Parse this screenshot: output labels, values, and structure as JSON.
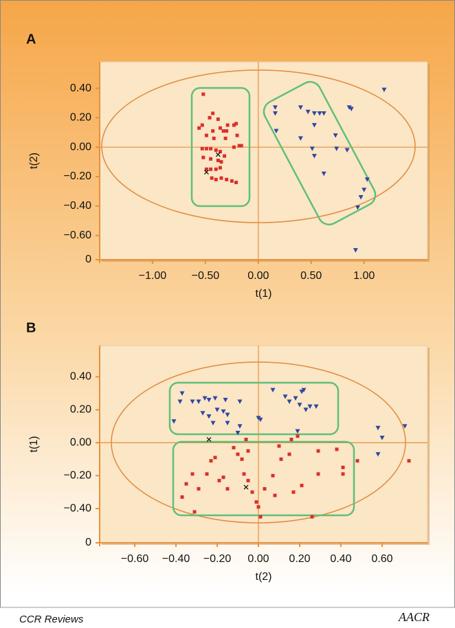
{
  "chart_data": [
    {
      "type": "scatter",
      "panel_label": "A",
      "x_label": "t(1)",
      "y_label": "t(2)",
      "xlim": [
        -1.5,
        1.6
      ],
      "ylim": [
        -0.765,
        0.58
      ],
      "xticks": [
        {
          "value": -1,
          "label": "−1.00"
        },
        {
          "value": -0.5,
          "label": "−0.50"
        },
        {
          "value": 0,
          "label": "0.00"
        },
        {
          "value": 0.5,
          "label": "0.50"
        },
        {
          "value": 1,
          "label": "1.00"
        }
      ],
      "yticks": [
        {
          "value": 0.4,
          "label": "0.40"
        },
        {
          "value": 0.2,
          "label": "0.20"
        },
        {
          "value": 0,
          "label": "0.00"
        },
        {
          "value": -0.2,
          "label": "−0.20"
        },
        {
          "value": -0.4,
          "label": "−0.40"
        },
        {
          "value": -0.6,
          "label": "−0.60"
        },
        {
          "value": -0.765,
          "label": "0"
        }
      ],
      "series": [
        {
          "color": "#d9302a",
          "marker": "square",
          "x": [
            -0.52,
            -0.56,
            -0.53,
            -0.49,
            -0.46,
            -0.43,
            -0.43,
            -0.42,
            -0.38,
            -0.36,
            -0.33,
            -0.31,
            -0.3,
            -0.29,
            -0.23,
            -0.2,
            -0.18,
            -0.16,
            -0.21,
            -0.53,
            -0.49,
            -0.45,
            -0.4,
            -0.36,
            -0.23,
            -0.52,
            -0.45,
            -0.38,
            -0.32,
            -0.49,
            -0.45,
            -0.4,
            -0.36,
            -0.44,
            -0.4,
            -0.35,
            -0.3,
            -0.25,
            -0.21,
            -0.35
          ],
          "y": [
            0.36,
            0.13,
            0.15,
            0.08,
            0.2,
            0.23,
            0.11,
            0.06,
            0.19,
            0.13,
            0.11,
            0.06,
            0.11,
            0.15,
            0.15,
            0.08,
            0.01,
            0.01,
            0.16,
            -0.01,
            -0.01,
            -0.01,
            -0.02,
            -0.03,
            0.0,
            -0.07,
            -0.08,
            -0.09,
            -0.06,
            -0.15,
            -0.15,
            -0.15,
            -0.14,
            -0.21,
            -0.22,
            -0.21,
            -0.22,
            -0.23,
            -0.24,
            -0.1
          ]
        },
        {
          "color": "#2f47a3",
          "marker": "triangle",
          "x": [
            0.16,
            0.16,
            0.17,
            0.4,
            0.4,
            0.47,
            0.53,
            0.58,
            0.53,
            0.62,
            0.73,
            0.74,
            0.51,
            0.53,
            0.84,
            0.62,
            0.86,
            0.88,
            1.03,
            1.0,
            0.97,
            0.94,
            0.92,
            1.19
          ],
          "y": [
            0.27,
            0.23,
            0.11,
            0.27,
            0.06,
            0.24,
            0.23,
            0.23,
            0.15,
            0.23,
            0.08,
            -0.01,
            -0.01,
            -0.06,
            -0.02,
            -0.18,
            0.27,
            0.26,
            -0.22,
            -0.29,
            -0.34,
            -0.41,
            -0.7,
            0.39
          ]
        },
        {
          "color": "#111111",
          "marker": "cross",
          "x": [
            -0.38,
            -0.49
          ],
          "y": [
            -0.05,
            -0.17
          ]
        }
      ]
    },
    {
      "type": "scatter",
      "panel_label": "B",
      "x_label": "t(2)",
      "y_label": "t(1)",
      "xlim": [
        -0.77,
        0.82
      ],
      "ylim": [
        -0.608,
        0.59
      ],
      "xticks": [
        {
          "value": -0.6,
          "label": "−0.60"
        },
        {
          "value": -0.4,
          "label": "−0.40"
        },
        {
          "value": -0.2,
          "label": "−0.20"
        },
        {
          "value": 0,
          "label": "0.00"
        },
        {
          "value": 0.2,
          "label": "0.20"
        },
        {
          "value": 0.4,
          "label": "0.40"
        },
        {
          "value": 0.6,
          "label": "0.60"
        }
      ],
      "yticks": [
        {
          "value": 0.4,
          "label": "0.40"
        },
        {
          "value": 0.2,
          "label": "0.20"
        },
        {
          "value": 0,
          "label": "0.00"
        },
        {
          "value": -0.2,
          "label": "−0.20"
        },
        {
          "value": -0.4,
          "label": "−0.40"
        },
        {
          "value": -0.608,
          "label": "0"
        }
      ],
      "series": [
        {
          "color": "#2f47a3",
          "marker": "triangle",
          "x": [
            -0.37,
            -0.38,
            -0.41,
            -0.32,
            -0.29,
            -0.26,
            -0.24,
            -0.21,
            -0.16,
            -0.09,
            -0.27,
            -0.24,
            -0.2,
            -0.17,
            -0.15,
            -0.22,
            -0.15,
            -0.09,
            -0.1,
            0.0,
            0.01,
            0.07,
            0.13,
            0.15,
            0.18,
            0.21,
            0.22,
            0.2,
            0.23,
            0.25,
            0.28,
            0.19,
            0.58,
            0.6,
            0.58,
            0.71
          ],
          "y": [
            0.3,
            0.25,
            0.13,
            0.25,
            0.25,
            0.27,
            0.26,
            0.27,
            0.26,
            0.25,
            0.18,
            0.16,
            0.2,
            0.19,
            0.17,
            0.12,
            0.12,
            0.1,
            0.06,
            0.15,
            0.14,
            0.32,
            0.28,
            0.25,
            0.27,
            0.31,
            0.32,
            0.23,
            0.2,
            0.22,
            0.22,
            0.07,
            0.09,
            0.03,
            -0.07,
            0.1
          ]
        },
        {
          "color": "#d9302a",
          "marker": "square",
          "x": [
            -0.37,
            -0.35,
            -0.32,
            -0.31,
            -0.29,
            -0.25,
            -0.23,
            -0.21,
            -0.19,
            -0.17,
            -0.15,
            -0.12,
            -0.1,
            -0.08,
            -0.07,
            -0.05,
            -0.06,
            -0.05,
            -0.03,
            -0.01,
            0.0,
            0.01,
            0.03,
            0.07,
            0.08,
            0.1,
            0.11,
            0.15,
            0.16,
            0.19,
            0.17,
            0.21,
            0.26,
            0.29,
            0.29,
            0.38,
            0.41,
            0.41,
            0.48,
            0.73
          ],
          "y": [
            -0.33,
            -0.25,
            -0.19,
            -0.42,
            -0.28,
            -0.19,
            -0.11,
            -0.09,
            -0.23,
            -0.21,
            -0.28,
            -0.03,
            -0.07,
            -0.1,
            -0.19,
            -0.05,
            0.02,
            -0.23,
            -0.3,
            -0.36,
            -0.39,
            -0.45,
            -0.28,
            -0.2,
            -0.32,
            -0.02,
            -0.1,
            -0.07,
            0.02,
            0.04,
            -0.3,
            -0.26,
            -0.45,
            -0.05,
            -0.19,
            -0.04,
            -0.15,
            -0.19,
            -0.11,
            -0.11
          ]
        },
        {
          "color": "#111111",
          "marker": "cross",
          "x": [
            -0.24,
            -0.06
          ],
          "y": [
            0.02,
            -0.27
          ]
        }
      ]
    }
  ],
  "footer": {
    "journal": "CCR Reviews",
    "logo": "AACR"
  }
}
